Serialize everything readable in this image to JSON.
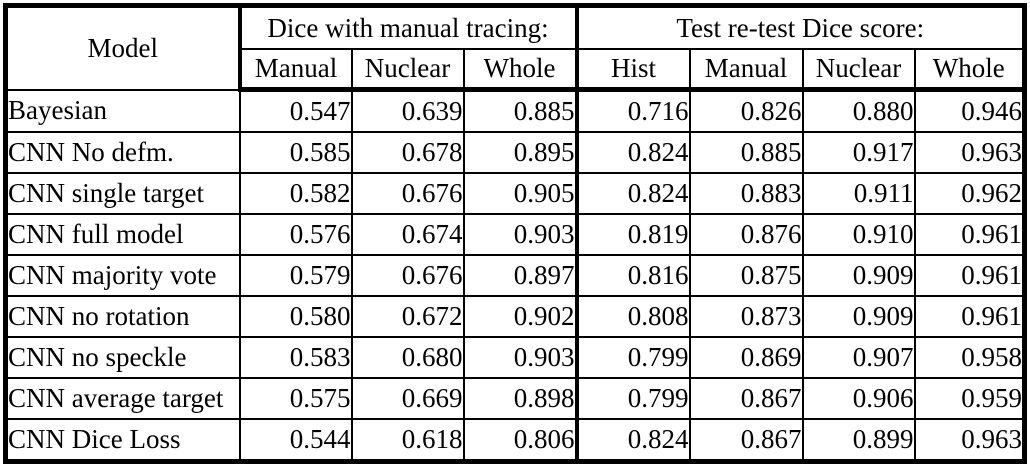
{
  "table": {
    "header": {
      "model_label": "Model",
      "groups": [
        {
          "label": "Dice with manual tracing:",
          "columns": [
            "Manual",
            "Nuclear",
            "Whole"
          ]
        },
        {
          "label": "Test re-test Dice score:",
          "columns": [
            "Hist",
            "Manual",
            "Nuclear",
            "Whole"
          ]
        }
      ]
    },
    "rows": [
      {
        "model": "Bayesian",
        "values": [
          "0.547",
          "0.639",
          "0.885",
          "0.716",
          "0.826",
          "0.880",
          "0.946"
        ]
      },
      {
        "model": "CNN No defm.",
        "values": [
          "0.585",
          "0.678",
          "0.895",
          "0.824",
          "0.885",
          "0.917",
          "0.963"
        ]
      },
      {
        "model": "CNN single target",
        "values": [
          "0.582",
          "0.676",
          "0.905",
          "0.824",
          "0.883",
          "0.911",
          "0.962"
        ]
      },
      {
        "model": "CNN full model",
        "values": [
          "0.576",
          "0.674",
          "0.903",
          "0.819",
          "0.876",
          "0.910",
          "0.961"
        ]
      },
      {
        "model": "CNN majority vote",
        "values": [
          "0.579",
          "0.676",
          "0.897",
          "0.816",
          "0.875",
          "0.909",
          "0.961"
        ]
      },
      {
        "model": "CNN no rotation",
        "values": [
          "0.580",
          "0.672",
          "0.902",
          "0.808",
          "0.873",
          "0.909",
          "0.961"
        ]
      },
      {
        "model": "CNN no speckle",
        "values": [
          "0.583",
          "0.680",
          "0.903",
          "0.799",
          "0.869",
          "0.907",
          "0.958"
        ]
      },
      {
        "model": "CNN average target",
        "values": [
          "0.575",
          "0.669",
          "0.898",
          "0.799",
          "0.867",
          "0.906",
          "0.959"
        ]
      },
      {
        "model": "CNN Dice Loss",
        "values": [
          "0.544",
          "0.618",
          "0.806",
          "0.824",
          "0.867",
          "0.899",
          "0.963"
        ]
      }
    ],
    "colors": {
      "border": "#000000",
      "text": "#000000",
      "background": "#ffffff"
    }
  }
}
